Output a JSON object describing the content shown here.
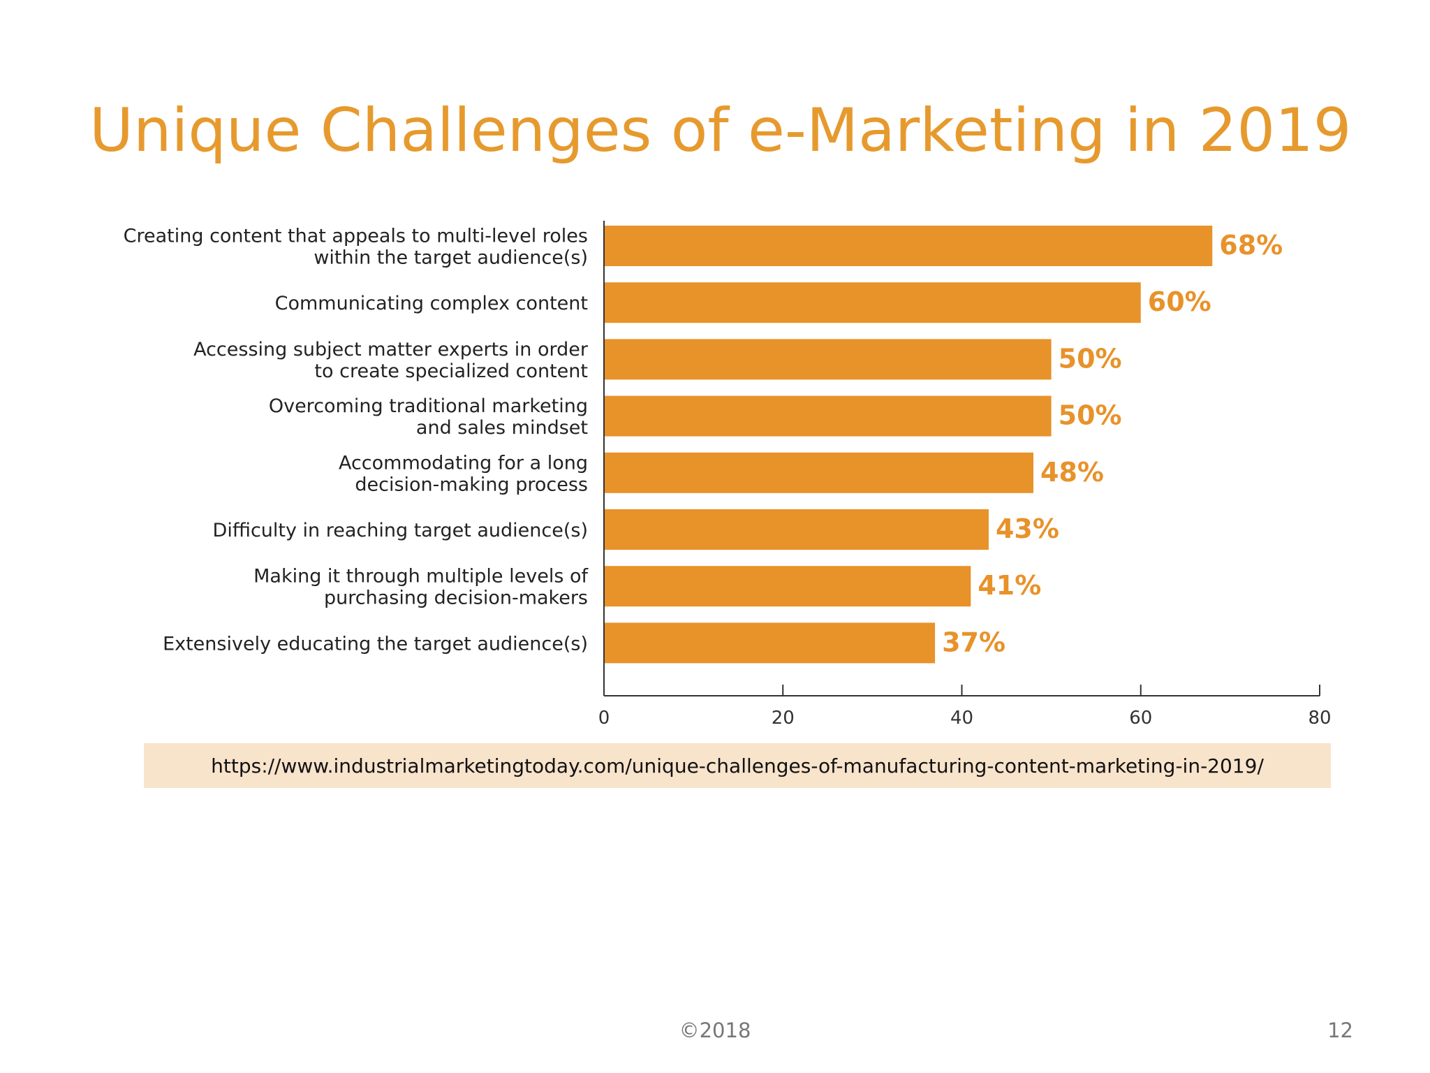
{
  "slide": {
    "title": "Unique Challenges of e-Marketing in 2019",
    "source_url": "https://www.industrialmarketingtoday.com/unique-challenges-of-manufacturing-content-marketing-in-2019/",
    "copyright": "©2018",
    "page_number": "12"
  },
  "colors": {
    "accent": "#E69A2E",
    "bar": "#E8922A",
    "source_background": "#F8E3CB"
  },
  "chart_data": {
    "type": "bar",
    "orientation": "horizontal",
    "title": "",
    "xlabel": "",
    "ylabel": "",
    "categories": [
      [
        "Creating content that appeals to multi-level roles",
        "within the target audience(s)"
      ],
      [
        "Communicating complex content"
      ],
      [
        "Accessing subject matter experts in order",
        "to create specialized content"
      ],
      [
        "Overcoming traditional marketing",
        "and sales mindset"
      ],
      [
        "Accommodating for a long",
        "decision-making process"
      ],
      [
        "Difficulty in reaching target audience(s)"
      ],
      [
        "Making it through multiple levels of",
        "purchasing decision-makers"
      ],
      [
        "Extensively educating the target audience(s)"
      ]
    ],
    "values": [
      68,
      60,
      50,
      50,
      48,
      43,
      41,
      37
    ],
    "data_labels": [
      "68%",
      "60%",
      "50%",
      "50%",
      "48%",
      "43%",
      "41%",
      "37%"
    ],
    "xlim": [
      0,
      80
    ],
    "xticks": [
      0,
      20,
      40,
      60,
      80
    ],
    "xtick_labels": [
      "0",
      "20",
      "40",
      "60",
      "80"
    ],
    "grid": false,
    "legend": "none"
  }
}
